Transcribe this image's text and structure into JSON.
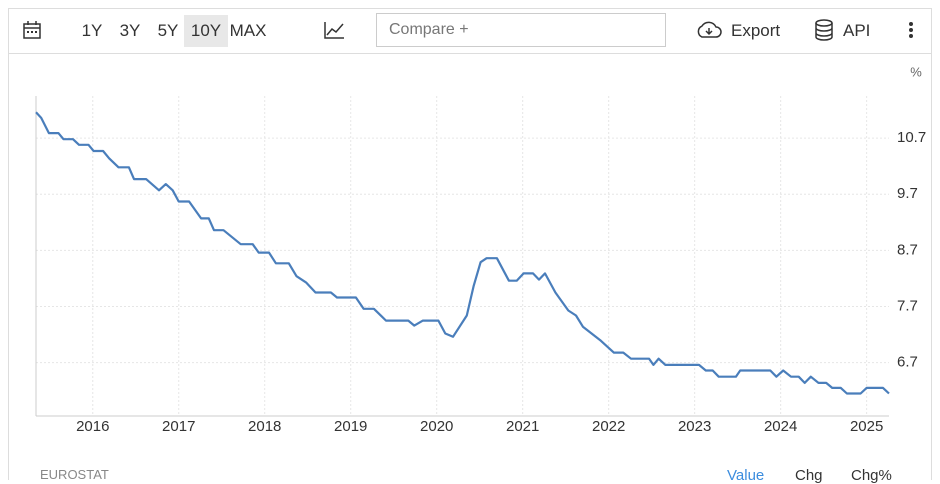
{
  "toolbar": {
    "ranges": [
      "1Y",
      "3Y",
      "5Y",
      "10Y",
      "MAX"
    ],
    "active_range": 3,
    "compare_placeholder": "Compare +",
    "export": "Export",
    "api": "API"
  },
  "chart_data": {
    "type": "line",
    "unit": "%",
    "color": "#4a7ebb",
    "x": [
      2015.34,
      2015.4,
      2015.49,
      2015.6,
      2015.66,
      2015.77,
      2015.84,
      2015.95,
      2016.01,
      2016.12,
      2016.19,
      2016.3,
      2016.42,
      2016.48,
      2016.62,
      2016.77,
      2016.85,
      2016.93,
      2017.0,
      2017.12,
      2017.26,
      2017.35,
      2017.41,
      2017.52,
      2017.72,
      2017.86,
      2017.93,
      2018.05,
      2018.13,
      2018.28,
      2018.37,
      2018.48,
      2018.59,
      2018.77,
      2018.84,
      2019.06,
      2019.15,
      2019.27,
      2019.41,
      2019.67,
      2019.74,
      2019.84,
      2020.02,
      2020.1,
      2020.19,
      2020.35,
      2020.43,
      2020.51,
      2020.58,
      2020.7,
      2020.84,
      2020.93,
      2021.01,
      2021.12,
      2021.19,
      2021.26,
      2021.38,
      2021.53,
      2021.62,
      2021.7,
      2021.91,
      2022.06,
      2022.17,
      2022.26,
      2022.47,
      2022.52,
      2022.58,
      2022.66,
      2023.05,
      2023.13,
      2023.21,
      2023.28,
      2023.48,
      2023.53,
      2023.88,
      2023.95,
      2024.03,
      2024.12,
      2024.21,
      2024.28,
      2024.35,
      2024.44,
      2024.53,
      2024.6,
      2024.7,
      2024.77,
      2024.93,
      2025.0,
      2025.19,
      2025.26
    ],
    "values": [
      11.16,
      11.06,
      10.79,
      10.79,
      10.68,
      10.68,
      10.58,
      10.58,
      10.47,
      10.47,
      10.34,
      10.18,
      10.18,
      9.97,
      9.97,
      9.77,
      9.88,
      9.77,
      9.57,
      9.57,
      9.27,
      9.27,
      9.06,
      9.06,
      8.81,
      8.81,
      8.66,
      8.66,
      8.47,
      8.47,
      8.24,
      8.13,
      7.95,
      7.95,
      7.86,
      7.86,
      7.66,
      7.66,
      7.45,
      7.45,
      7.36,
      7.45,
      7.45,
      7.22,
      7.16,
      7.54,
      8.07,
      8.49,
      8.56,
      8.56,
      8.16,
      8.16,
      8.29,
      8.29,
      8.18,
      8.29,
      7.95,
      7.63,
      7.54,
      7.34,
      7.09,
      6.88,
      6.88,
      6.77,
      6.77,
      6.66,
      6.77,
      6.66,
      6.66,
      6.56,
      6.56,
      6.45,
      6.45,
      6.56,
      6.56,
      6.45,
      6.56,
      6.45,
      6.45,
      6.34,
      6.45,
      6.34,
      6.34,
      6.25,
      6.25,
      6.15,
      6.15,
      6.25,
      6.25,
      6.15
    ],
    "xlim": [
      2015.34,
      2025.26
    ],
    "xticks": [
      2016,
      2017,
      2018,
      2019,
      2020,
      2021,
      2022,
      2023,
      2024,
      2025
    ],
    "ylim": [
      5.75,
      11.45
    ],
    "yticks": [
      6.7,
      7.7,
      8.7,
      9.7,
      10.7
    ],
    "grid": true
  },
  "footer": {
    "source": "EUROSTAT",
    "views": [
      "Value",
      "Chg",
      "Chg%"
    ],
    "active_view": 0
  }
}
